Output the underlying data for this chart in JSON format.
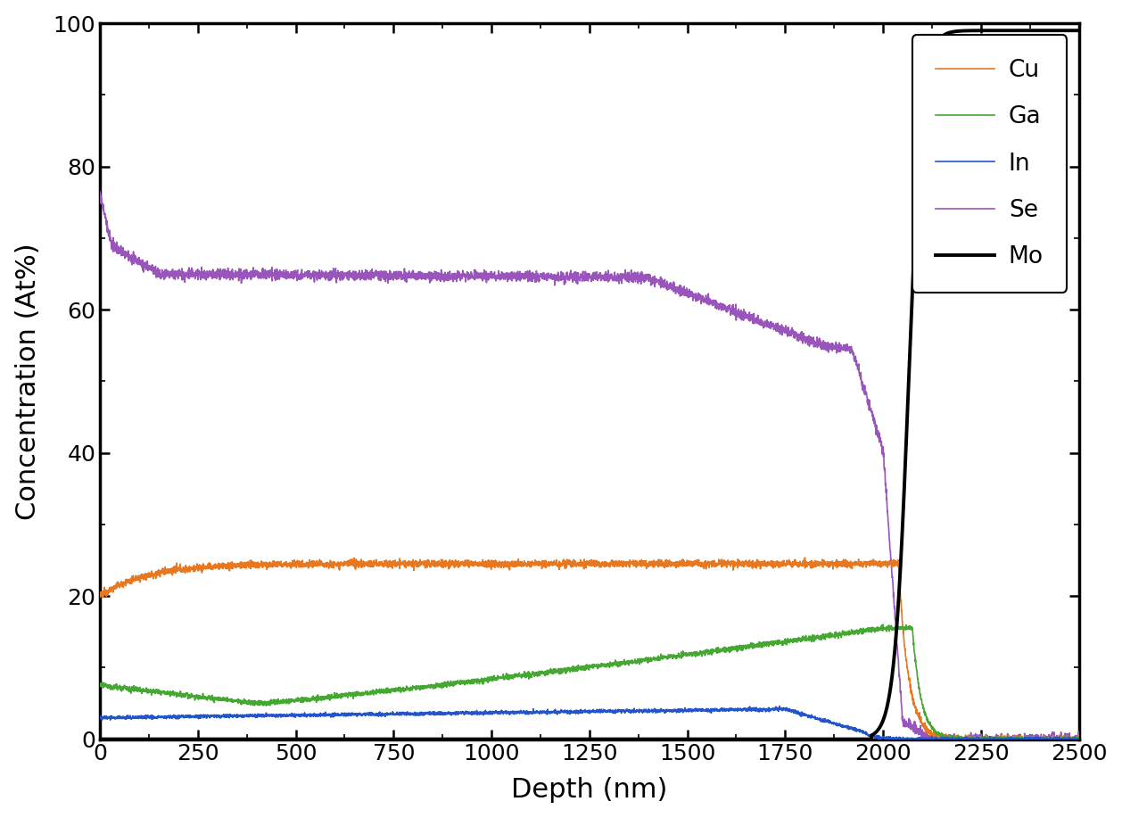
{
  "title": "",
  "xlabel": "Depth (nm)",
  "ylabel": "Concentration (At%)",
  "xlim": [
    0,
    2500
  ],
  "ylim": [
    0,
    100
  ],
  "xticks": [
    0,
    250,
    500,
    750,
    1000,
    1250,
    1500,
    1750,
    2000,
    2250,
    2500
  ],
  "yticks": [
    0,
    20,
    40,
    60,
    80,
    100
  ],
  "elements": [
    "Cu",
    "Ga",
    "In",
    "Se",
    "Mo"
  ],
  "colors": {
    "Cu": "#E87820",
    "Ga": "#44A832",
    "In": "#2255CC",
    "Se": "#9955BB",
    "Mo": "#000000"
  },
  "linewidth": 1.2,
  "noise_amplitude": {
    "Cu": 0.25,
    "Ga": 0.18,
    "In": 0.12,
    "Se": 0.35,
    "Mo": 0.0
  }
}
